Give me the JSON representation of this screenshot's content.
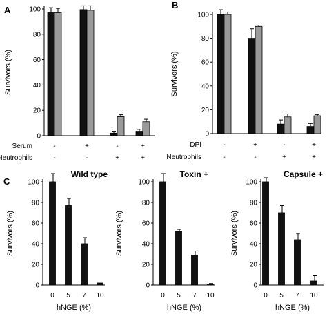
{
  "colors": {
    "black_bar": "#111111",
    "grey_bar": "#9a9a9a",
    "axis": "#000000"
  },
  "chart_data": [
    {
      "panel": "A",
      "type": "bar",
      "ylabel": "Survivors (%)",
      "ylim": [
        0,
        100
      ],
      "yticks": [
        0,
        20,
        40,
        60,
        80,
        100
      ],
      "series": [
        {
          "values": [
            97,
            99.5,
            2,
            3.5
          ],
          "errors": [
            4,
            3,
            1.5,
            1.5
          ],
          "color": "#111111"
        },
        {
          "values": [
            97,
            99,
            15,
            11
          ],
          "errors": [
            3.5,
            3.5,
            1.5,
            2
          ],
          "color": "#9a9a9a"
        }
      ],
      "condition_rows": [
        {
          "label": "Serum",
          "marks": [
            "-",
            "+",
            "-",
            "+"
          ]
        },
        {
          "label": "Neutrophils",
          "marks": [
            "-",
            "-",
            "+",
            "+"
          ]
        }
      ]
    },
    {
      "panel": "B",
      "type": "bar",
      "ylabel": "Survivors (%)",
      "ylim": [
        0,
        100
      ],
      "yticks": [
        0,
        20,
        40,
        60,
        80,
        100
      ],
      "series": [
        {
          "values": [
            100,
            80,
            8,
            6
          ],
          "errors": [
            4,
            8,
            3.5,
            2.5
          ],
          "color": "#111111"
        },
        {
          "values": [
            100,
            90,
            14,
            15
          ],
          "errors": [
            2,
            1,
            2.5,
            1
          ],
          "color": "#9a9a9a"
        }
      ],
      "condition_rows": [
        {
          "label": "DPI",
          "marks": [
            "-",
            "+",
            "-",
            "+"
          ]
        },
        {
          "label": "Neutrophils",
          "marks": [
            "-",
            "-",
            "+",
            "+"
          ]
        }
      ]
    },
    {
      "panel": "C",
      "type": "bar",
      "title": "Wild type",
      "xlabel": "hNGE (%)",
      "ylabel": "Survivors (%)",
      "ylim": [
        0,
        100
      ],
      "yticks": [
        0,
        20,
        40,
        60,
        80,
        100
      ],
      "categories": [
        "0",
        "5",
        "7",
        "10"
      ],
      "values": [
        100,
        77,
        40,
        2
      ],
      "errors": [
        8,
        7,
        6,
        0
      ]
    },
    {
      "type": "bar",
      "title": "Toxin +",
      "xlabel": "hNGE (%)",
      "ylabel": "Survivors (%)",
      "ylim": [
        0,
        100
      ],
      "yticks": [
        0,
        20,
        40,
        60,
        80,
        100
      ],
      "categories": [
        "0",
        "5",
        "7",
        "10"
      ],
      "values": [
        100,
        52,
        29,
        1
      ],
      "errors": [
        8,
        2,
        4,
        0.5
      ]
    },
    {
      "type": "bar",
      "title": "Capsule +",
      "xlabel": "hNGE (%)",
      "ylabel": "Survivors (%)",
      "ylim": [
        0,
        100
      ],
      "yticks": [
        0,
        20,
        40,
        60,
        80,
        100
      ],
      "categories": [
        "0",
        "5",
        "7",
        "10"
      ],
      "values": [
        100,
        70,
        44,
        4
      ],
      "errors": [
        4,
        7,
        6,
        5
      ]
    }
  ]
}
